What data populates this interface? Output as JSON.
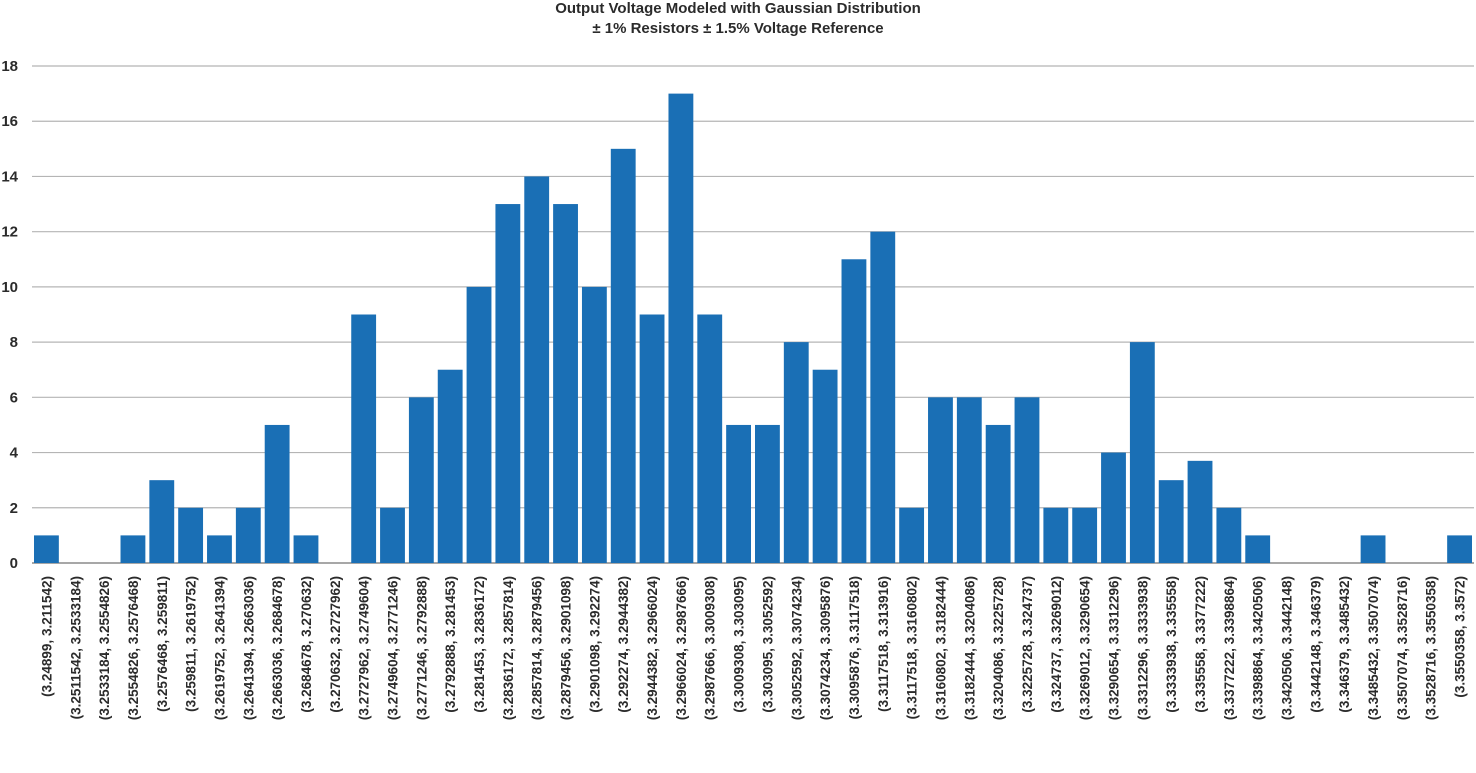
{
  "chart_data": {
    "type": "bar",
    "title": "Output Voltage Modeled with Gaussian Distribution",
    "subtitle": "± 1% Resistors ± 1.5% Voltage Reference",
    "xlabel": "",
    "ylabel": "",
    "ylim": [
      0,
      18
    ],
    "yticks": [
      0,
      2,
      4,
      6,
      8,
      10,
      12,
      14,
      16,
      18
    ],
    "grid": true,
    "bar_color": "#1a6fb5",
    "categories": [
      "(3.24899, 3.211542)",
      "(3.2511542, 3.2533184)",
      "(3.2533184, 3.2554826)",
      "(3.2554826, 3.2576468)",
      "(3.2576468, 3.259811)",
      "(3.259811, 3.2619752)",
      "(3.2619752, 3.2641394)",
      "(3.2641394, 3.2663036)",
      "(3.2663036, 3.2684678)",
      "(3.2684678, 3.270632)",
      "(3.270632, 3.2727962)",
      "(3.2727962, 3.2749604)",
      "(3.2749604, 3.2771246)",
      "(3.2771246, 3.2792888)",
      "(3.2792888, 3.281453)",
      "(3.281453, 3.2836172)",
      "(3.2836172, 3.2857814)",
      "(3.2857814, 3.2879456)",
      "(3.2879456, 3.2901098)",
      "(3.2901098, 3.292274)",
      "(3.292274, 3.2944382)",
      "(3.2944382, 3.2966024)",
      "(3.2966024, 3.2987666)",
      "(3.2987666, 3.3009308)",
      "(3.3009308, 3.303095)",
      "(3.303095, 3.3052592)",
      "(3.3052592, 3.3074234)",
      "(3.3074234, 3.3095876)",
      "(3.3095876, 3.3117518)",
      "(3.3117518, 3.313916)",
      "(3.3117518, 3.3160802)",
      "(3.3160802, 3.3182444)",
      "(3.3182444, 3.3204086)",
      "(3.3204086, 3.3225728)",
      "(3.3225728, 3.324737)",
      "(3.324737, 3.3269012)",
      "(3.3269012, 3.3290654)",
      "(3.3290654, 3.3312296)",
      "(3.3312296, 3.3333938)",
      "(3.3333938, 3.335558)",
      "(3.335558, 3.3377222)",
      "(3.3377222, 3.3398864)",
      "(3.3398864, 3.3420506)",
      "(3.3420506, 3.3442148)",
      "(3.3442148, 3.346379)",
      "(3.346379, 3.3485432)",
      "(3.3485432, 3.3507074)",
      "(3.3507074, 3.3528716)",
      "(3.3528716, 3.3550358)",
      "(3.3550358, 3.3572)"
    ],
    "values": [
      1,
      0,
      0,
      1,
      3,
      2,
      1,
      2,
      5,
      1,
      0,
      9,
      2,
      6,
      7,
      10,
      13,
      14,
      13,
      10,
      15,
      9,
      17,
      9,
      5,
      5,
      8,
      7,
      11,
      12,
      2,
      6,
      6,
      5,
      6,
      2,
      2,
      4,
      8,
      3,
      3.7,
      2,
      1,
      0,
      0,
      0,
      1,
      0,
      0,
      1
    ]
  }
}
